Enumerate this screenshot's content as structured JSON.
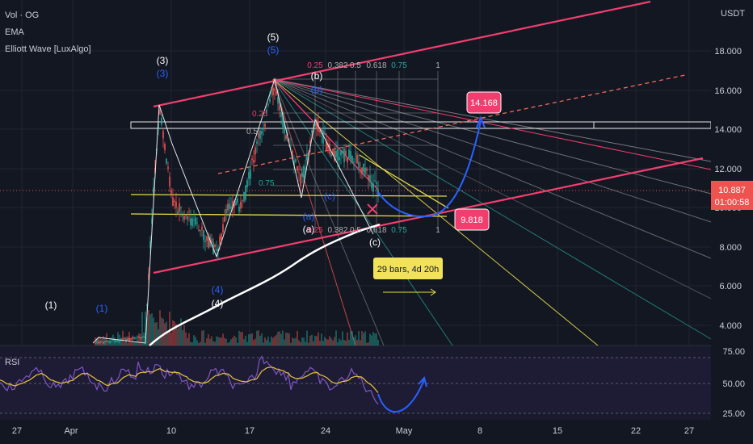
{
  "indicators": [
    "Vol · OG",
    "EMA",
    "Elliott Wave [LuxAlgo]"
  ],
  "currency": "USDT",
  "price_axis": [
    "18.000",
    "16.000",
    "14.000",
    "12.000",
    "10.000",
    "8.000",
    "6.000",
    "4.000"
  ],
  "last_price": {
    "value": "10.887",
    "countdown": "01:00:58"
  },
  "targets": {
    "up": "14.168",
    "down": "9.818"
  },
  "bars_label": "29 bars, 4d 20h",
  "fib_top": [
    "0.25",
    "0.382",
    "0.5",
    "0.618",
    "0.75",
    "1"
  ],
  "fib_bottom": [
    "0.25",
    "0.382",
    "0.5",
    "0.618",
    "0.75",
    "1"
  ],
  "fib_left": [
    "0.25",
    "0.5",
    "0.75"
  ],
  "waves": {
    "w1": "(1)",
    "w3": "(3)",
    "w4": "(4)",
    "w5": "(5)",
    "wa": "(a)",
    "wb": "(b)",
    "wc": "(c)"
  },
  "rsi": {
    "label": "RSI",
    "axis": [
      "75.00",
      "50.00",
      "25.00"
    ]
  },
  "date_axis": [
    "27",
    "Apr",
    "10",
    "17",
    "24",
    "May",
    "8",
    "15",
    "22",
    "27"
  ],
  "colors": {
    "bg": "#131722",
    "pink": "#f23e6e",
    "yellow": "#e8dd4a",
    "white": "#e6e6e6",
    "blue": "#2962ff",
    "rsi": "#7e57c2",
    "rsiema": "#e8c53a",
    "up": "#26a69a",
    "down": "#ef5350"
  },
  "chart_data": {
    "type": "candlestick",
    "x_range": [
      "2023-03-24",
      "2023-05-28"
    ],
    "ylim": [
      3.2,
      19.5
    ],
    "y_unit": "USDT",
    "key_levels": {
      "last": 10.887,
      "target_up": 14.168,
      "target_down": 9.818,
      "resistance": 14.2,
      "support": 10.2
    },
    "wave_points": [
      {
        "label": "(3)",
        "date": "2023-04-09",
        "price": 15.3
      },
      {
        "label": "(4)",
        "date": "2023-04-15",
        "price": 7.5
      },
      {
        "label": "(5)",
        "date": "2023-04-19",
        "price": 16.6
      },
      {
        "label": "(a)",
        "date": "2023-04-23",
        "price": 9.9
      },
      {
        "label": "(b)",
        "date": "2023-04-23",
        "price": 14.6
      },
      {
        "label": "(c)",
        "date": "2023-04-29",
        "price": 8.8
      }
    ],
    "rsi_levels": [
      75,
      50,
      25
    ]
  }
}
